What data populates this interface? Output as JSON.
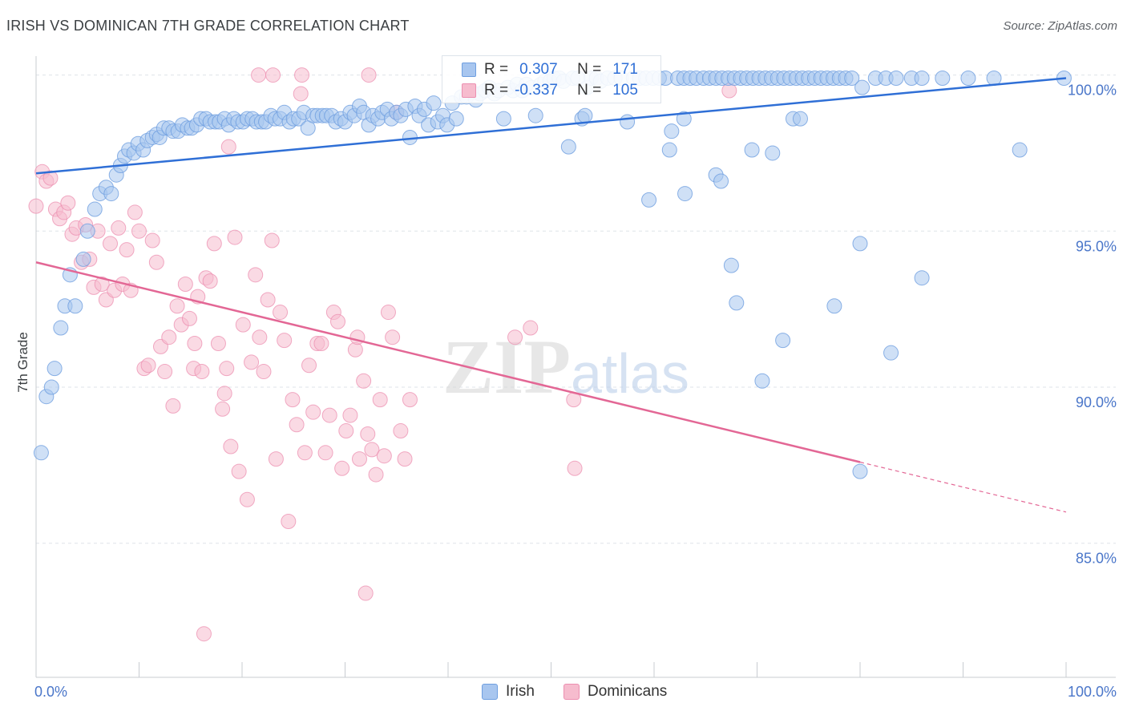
{
  "header": {
    "title": "IRISH VS DOMINICAN 7TH GRADE CORRELATION CHART",
    "source": "Source: ZipAtlas.com"
  },
  "legend": {
    "irish": {
      "r_label": "R =",
      "r_value": "0.307",
      "n_label": "N =",
      "n_value": "171"
    },
    "dominicans": {
      "r_label": "R =",
      "r_value": "-0.337",
      "n_label": "N =",
      "n_value": "105"
    }
  },
  "bottom_legend": {
    "irish": "Irish",
    "dominicans": "Dominicans"
  },
  "watermark": {
    "zip": "ZIP",
    "atlas": "atlas"
  },
  "colors": {
    "irish_fill": "#a8c6ef",
    "irish_stroke": "#6f9fe0",
    "irish_line": "#2f6fd6",
    "dom_fill": "#f6bcce",
    "dom_stroke": "#ec8fb0",
    "dom_line": "#e36795",
    "tick_text": "#4a76c9",
    "grid": "#dfe3e8"
  },
  "chart_data": {
    "type": "scatter",
    "title": "IRISH VS DOMINICAN 7TH GRADE CORRELATION CHART",
    "xlabel": "",
    "ylabel": "7th Grade",
    "xlim": [
      0,
      100
    ],
    "ylim": [
      80.5,
      100.4
    ],
    "x_tick_labels": [
      "0.0%",
      "100.0%"
    ],
    "y_ticks": [
      100,
      95,
      90,
      85
    ],
    "y_tick_labels": [
      "100.0%",
      "95.0%",
      "90.0%",
      "85.0%"
    ],
    "grid": true,
    "legend_position": "top-center",
    "series": [
      {
        "name": "Irish",
        "r": 0.307,
        "n": 171,
        "trend": {
          "x": [
            0,
            100
          ],
          "y": [
            96.85,
            99.9
          ],
          "dashed_from": null
        },
        "points": [
          [
            0.5,
            87.9
          ],
          [
            1.0,
            89.7
          ],
          [
            1.5,
            90.0
          ],
          [
            1.8,
            90.6
          ],
          [
            2.4,
            91.9
          ],
          [
            2.8,
            92.6
          ],
          [
            3.3,
            93.6
          ],
          [
            3.8,
            92.6
          ],
          [
            4.6,
            94.1
          ],
          [
            5.0,
            95.0
          ],
          [
            5.7,
            95.7
          ],
          [
            6.2,
            96.2
          ],
          [
            6.8,
            96.4
          ],
          [
            7.3,
            96.2
          ],
          [
            7.8,
            96.8
          ],
          [
            8.2,
            97.1
          ],
          [
            8.6,
            97.4
          ],
          [
            9.0,
            97.6
          ],
          [
            9.5,
            97.5
          ],
          [
            9.9,
            97.8
          ],
          [
            10.4,
            97.6
          ],
          [
            10.8,
            97.9
          ],
          [
            11.3,
            98.0
          ],
          [
            11.7,
            98.1
          ],
          [
            12.0,
            98.0
          ],
          [
            12.4,
            98.3
          ],
          [
            12.9,
            98.3
          ],
          [
            13.3,
            98.2
          ],
          [
            13.8,
            98.2
          ],
          [
            14.2,
            98.4
          ],
          [
            14.7,
            98.3
          ],
          [
            15.1,
            98.3
          ],
          [
            15.6,
            98.4
          ],
          [
            16.0,
            98.6
          ],
          [
            16.5,
            98.6
          ],
          [
            16.9,
            98.5
          ],
          [
            17.4,
            98.5
          ],
          [
            17.8,
            98.5
          ],
          [
            18.3,
            98.6
          ],
          [
            18.7,
            98.4
          ],
          [
            19.2,
            98.6
          ],
          [
            19.6,
            98.5
          ],
          [
            20.1,
            98.5
          ],
          [
            20.5,
            98.6
          ],
          [
            21.0,
            98.6
          ],
          [
            21.4,
            98.5
          ],
          [
            21.9,
            98.5
          ],
          [
            22.3,
            98.5
          ],
          [
            22.8,
            98.7
          ],
          [
            23.2,
            98.6
          ],
          [
            23.7,
            98.6
          ],
          [
            24.1,
            98.8
          ],
          [
            24.6,
            98.5
          ],
          [
            25.0,
            98.6
          ],
          [
            25.5,
            98.6
          ],
          [
            26.0,
            98.8
          ],
          [
            26.4,
            98.3
          ],
          [
            26.9,
            98.7
          ],
          [
            27.3,
            98.7
          ],
          [
            27.8,
            98.7
          ],
          [
            28.2,
            98.7
          ],
          [
            28.7,
            98.7
          ],
          [
            29.1,
            98.5
          ],
          [
            29.6,
            98.6
          ],
          [
            30.0,
            98.5
          ],
          [
            30.5,
            98.8
          ],
          [
            30.9,
            98.7
          ],
          [
            31.4,
            99.0
          ],
          [
            31.8,
            98.8
          ],
          [
            32.3,
            98.4
          ],
          [
            32.7,
            98.7
          ],
          [
            33.2,
            98.6
          ],
          [
            33.6,
            98.8
          ],
          [
            34.1,
            98.9
          ],
          [
            34.5,
            98.6
          ],
          [
            35.0,
            98.8
          ],
          [
            35.4,
            98.7
          ],
          [
            35.9,
            98.9
          ],
          [
            36.3,
            98.0
          ],
          [
            36.8,
            99.0
          ],
          [
            37.2,
            98.7
          ],
          [
            37.7,
            98.9
          ],
          [
            38.1,
            98.4
          ],
          [
            38.6,
            99.1
          ],
          [
            39.0,
            98.5
          ],
          [
            39.5,
            98.7
          ],
          [
            39.9,
            98.4
          ],
          [
            40.4,
            99.1
          ],
          [
            40.8,
            98.6
          ],
          [
            41.3,
            99.3
          ],
          [
            41.8,
            99.3
          ],
          [
            42.2,
            99.5
          ],
          [
            42.7,
            99.2
          ],
          [
            43.1,
            99.4
          ],
          [
            43.6,
            99.5
          ],
          [
            44.0,
            99.6
          ],
          [
            44.5,
            99.4
          ],
          [
            44.9,
            99.5
          ],
          [
            45.4,
            98.6
          ],
          [
            45.8,
            99.6
          ],
          [
            46.3,
            99.5
          ],
          [
            46.7,
            99.7
          ],
          [
            47.2,
            99.5
          ],
          [
            47.6,
            99.7
          ],
          [
            48.1,
            99.6
          ],
          [
            48.5,
            98.7
          ],
          [
            49.0,
            99.7
          ],
          [
            49.4,
            99.8
          ],
          [
            49.9,
            99.8
          ],
          [
            50.3,
            99.9
          ],
          [
            50.8,
            99.9
          ],
          [
            51.2,
            99.8
          ],
          [
            51.7,
            97.7
          ],
          [
            52.1,
            99.9
          ],
          [
            52.6,
            99.9
          ],
          [
            53.0,
            98.6
          ],
          [
            53.5,
            99.6
          ],
          [
            53.9,
            99.9
          ],
          [
            54.4,
            99.9
          ],
          [
            54.8,
            99.8
          ],
          [
            55.5,
            99.9
          ],
          [
            56.2,
            99.9
          ],
          [
            56.8,
            99.9
          ],
          [
            57.4,
            98.5
          ],
          [
            58.0,
            99.9
          ],
          [
            58.6,
            99.9
          ],
          [
            59.2,
            99.9
          ],
          [
            59.9,
            99.9
          ],
          [
            60.5,
            99.9
          ],
          [
            61.1,
            99.9
          ],
          [
            61.7,
            98.2
          ],
          [
            62.3,
            99.9
          ],
          [
            62.9,
            99.9
          ],
          [
            63.5,
            99.9
          ],
          [
            64.1,
            99.9
          ],
          [
            64.8,
            99.9
          ],
          [
            65.4,
            99.9
          ],
          [
            66.0,
            99.9
          ],
          [
            66.6,
            99.9
          ],
          [
            67.2,
            99.9
          ],
          [
            67.8,
            99.9
          ],
          [
            68.4,
            99.9
          ],
          [
            69.0,
            99.9
          ],
          [
            69.6,
            99.9
          ],
          [
            70.2,
            99.9
          ],
          [
            70.8,
            99.9
          ],
          [
            71.4,
            99.9
          ],
          [
            72.0,
            99.9
          ],
          [
            72.6,
            99.9
          ],
          [
            73.2,
            99.9
          ],
          [
            73.8,
            99.9
          ],
          [
            74.4,
            99.9
          ],
          [
            75.0,
            99.9
          ],
          [
            75.6,
            99.9
          ],
          [
            76.2,
            99.9
          ],
          [
            76.8,
            99.9
          ],
          [
            77.4,
            99.9
          ],
          [
            78.0,
            99.9
          ],
          [
            78.6,
            99.9
          ],
          [
            79.2,
            99.9
          ],
          [
            80.2,
            99.6
          ],
          [
            81.5,
            99.9
          ],
          [
            82.5,
            99.9
          ],
          [
            83.5,
            99.9
          ],
          [
            85.0,
            99.9
          ],
          [
            86.0,
            99.9
          ],
          [
            88.0,
            99.9
          ],
          [
            90.5,
            99.9
          ],
          [
            93.0,
            99.9
          ],
          [
            99.8,
            99.9
          ],
          [
            59.5,
            96.0
          ],
          [
            61.5,
            97.6
          ],
          [
            63.0,
            96.2
          ],
          [
            66.0,
            96.8
          ],
          [
            66.5,
            96.6
          ],
          [
            67.5,
            93.9
          ],
          [
            68.0,
            92.7
          ],
          [
            69.5,
            97.6
          ],
          [
            70.5,
            90.2
          ],
          [
            71.5,
            97.5
          ],
          [
            72.5,
            91.5
          ],
          [
            73.5,
            98.6
          ],
          [
            74.2,
            98.6
          ],
          [
            77.5,
            92.6
          ],
          [
            80.0,
            94.6
          ],
          [
            83.0,
            91.1
          ],
          [
            86.0,
            93.5
          ],
          [
            95.5,
            97.6
          ],
          [
            80.0,
            87.3
          ],
          [
            53.3,
            98.7
          ],
          [
            62.9,
            98.6
          ]
        ]
      },
      {
        "name": "Dominicans",
        "r": -0.337,
        "n": 105,
        "trend": {
          "x": [
            0,
            100
          ],
          "y": [
            94.0,
            86.0
          ],
          "dashed_from": 80
        },
        "points": [
          [
            0.0,
            95.8
          ],
          [
            0.6,
            96.9
          ],
          [
            1.0,
            96.6
          ],
          [
            1.4,
            96.7
          ],
          [
            1.9,
            95.7
          ],
          [
            2.3,
            95.4
          ],
          [
            2.7,
            95.6
          ],
          [
            3.1,
            95.9
          ],
          [
            3.5,
            94.9
          ],
          [
            3.9,
            95.1
          ],
          [
            4.4,
            94.0
          ],
          [
            4.8,
            95.2
          ],
          [
            5.2,
            94.1
          ],
          [
            5.6,
            93.2
          ],
          [
            6.0,
            95.0
          ],
          [
            6.4,
            93.3
          ],
          [
            6.8,
            92.8
          ],
          [
            7.2,
            94.6
          ],
          [
            7.6,
            93.1
          ],
          [
            8.0,
            95.1
          ],
          [
            8.4,
            93.3
          ],
          [
            8.8,
            94.4
          ],
          [
            9.2,
            93.1
          ],
          [
            9.6,
            95.6
          ],
          [
            10.0,
            95.0
          ],
          [
            10.5,
            90.6
          ],
          [
            10.9,
            90.7
          ],
          [
            11.3,
            94.7
          ],
          [
            11.7,
            94.0
          ],
          [
            12.1,
            91.3
          ],
          [
            12.5,
            90.5
          ],
          [
            12.9,
            91.6
          ],
          [
            13.3,
            89.4
          ],
          [
            13.7,
            92.6
          ],
          [
            14.1,
            92.0
          ],
          [
            14.5,
            93.3
          ],
          [
            14.9,
            92.2
          ],
          [
            15.3,
            90.6
          ],
          [
            15.7,
            92.9
          ],
          [
            16.1,
            90.5
          ],
          [
            16.5,
            93.5
          ],
          [
            16.9,
            93.4
          ],
          [
            17.3,
            94.6
          ],
          [
            17.7,
            91.4
          ],
          [
            18.1,
            89.3
          ],
          [
            18.5,
            90.6
          ],
          [
            18.9,
            88.1
          ],
          [
            19.3,
            94.8
          ],
          [
            19.7,
            87.3
          ],
          [
            20.1,
            92.0
          ],
          [
            20.5,
            86.4
          ],
          [
            20.9,
            90.8
          ],
          [
            21.3,
            93.6
          ],
          [
            21.7,
            91.6
          ],
          [
            22.1,
            90.5
          ],
          [
            22.5,
            92.8
          ],
          [
            22.9,
            94.7
          ],
          [
            23.3,
            87.7
          ],
          [
            23.7,
            92.4
          ],
          [
            24.1,
            91.5
          ],
          [
            24.5,
            85.7
          ],
          [
            24.9,
            89.6
          ],
          [
            25.3,
            88.8
          ],
          [
            25.7,
            99.4
          ],
          [
            26.1,
            87.9
          ],
          [
            26.5,
            90.7
          ],
          [
            26.9,
            89.2
          ],
          [
            27.3,
            91.4
          ],
          [
            27.7,
            91.4
          ],
          [
            28.1,
            87.9
          ],
          [
            28.5,
            89.1
          ],
          [
            28.9,
            92.4
          ],
          [
            29.3,
            92.1
          ],
          [
            29.7,
            87.4
          ],
          [
            30.1,
            88.6
          ],
          [
            30.5,
            89.1
          ],
          [
            31.0,
            91.2
          ],
          [
            31.4,
            87.7
          ],
          [
            31.8,
            90.2
          ],
          [
            32.2,
            88.5
          ],
          [
            32.6,
            88.0
          ],
          [
            33.0,
            87.2
          ],
          [
            33.4,
            89.6
          ],
          [
            33.8,
            87.8
          ],
          [
            34.2,
            92.4
          ],
          [
            34.6,
            91.6
          ],
          [
            35.0,
            98.8
          ],
          [
            35.4,
            88.6
          ],
          [
            35.8,
            87.7
          ],
          [
            36.3,
            89.6
          ],
          [
            16.3,
            82.1
          ],
          [
            32.0,
            83.4
          ],
          [
            46.5,
            91.6
          ],
          [
            48.0,
            91.9
          ],
          [
            52.3,
            87.4
          ],
          [
            52.2,
            89.6
          ],
          [
            18.7,
            97.7
          ],
          [
            15.4,
            91.4
          ],
          [
            18.3,
            89.8
          ],
          [
            31.2,
            91.6
          ],
          [
            21.6,
            100.0
          ],
          [
            23.0,
            100.0
          ],
          [
            25.8,
            100.0
          ],
          [
            32.3,
            100.0
          ],
          [
            67.3,
            99.5
          ]
        ]
      }
    ]
  }
}
